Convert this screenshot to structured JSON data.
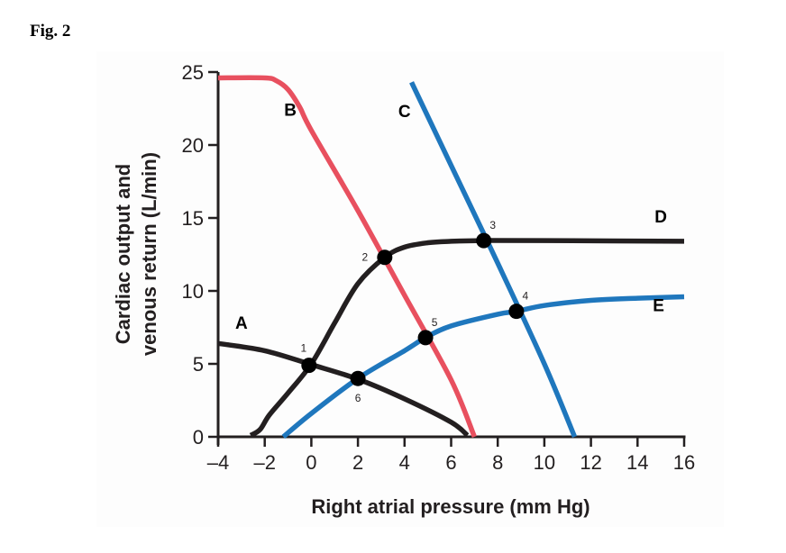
{
  "figure_label": "Fig. 2",
  "chart_data": {
    "type": "line",
    "title": "",
    "xlabel": "Right atrial pressure (mm Hg)",
    "ylabel_lines": [
      "Cardiac output and",
      "venous return (L/min)"
    ],
    "xlim": [
      -4,
      16
    ],
    "ylim": [
      0,
      25
    ],
    "x_ticks": [
      -4,
      -2,
      0,
      2,
      4,
      6,
      8,
      10,
      12,
      14,
      16
    ],
    "x_tick_labels": [
      "–4",
      "–2",
      "0",
      "2",
      "4",
      "6",
      "8",
      "10",
      "12",
      "14",
      "16"
    ],
    "y_ticks": [
      0,
      5,
      10,
      15,
      20,
      25
    ],
    "y_tick_labels": [
      "0",
      "5",
      "10",
      "15",
      "20",
      "25"
    ],
    "grid": false,
    "colors": {
      "black": "#231f20",
      "red": "#e8505f",
      "blue": "#1f77bd"
    },
    "series": [
      {
        "name": "A",
        "color": "#231f20",
        "x": [
          -4,
          -2,
          0,
          2,
          4,
          6,
          6.7
        ],
        "y": [
          6.4,
          5.9,
          4.95,
          3.95,
          2.6,
          1.0,
          0.1
        ],
        "label_at": [
          -3.0,
          7.4
        ]
      },
      {
        "name": "B",
        "color": "#e8505f",
        "x": [
          -4,
          -2,
          -1.5,
          -1.0,
          -0.5,
          0,
          2,
          4,
          6,
          7.0
        ],
        "y": [
          24.6,
          24.6,
          24.4,
          23.8,
          22.6,
          21.0,
          15.5,
          9.7,
          3.9,
          0
        ],
        "label_at": [
          -0.9,
          22.0
        ]
      },
      {
        "name": "C",
        "color": "#1f77bd",
        "x": [
          4.3,
          6,
          8,
          10,
          11.3
        ],
        "y": [
          24.3,
          18.6,
          11.9,
          5.0,
          0
        ],
        "label_at": [
          4.0,
          21.9
        ]
      },
      {
        "name": "D",
        "color": "#231f20",
        "x": [
          -2.6,
          -2.2,
          -1.8,
          -1,
          0,
          1,
          2,
          3.15,
          4,
          5,
          6,
          7.4,
          10,
          16
        ],
        "y": [
          0.1,
          0.5,
          1.5,
          3.0,
          5.0,
          7.8,
          10.5,
          12.3,
          13.0,
          13.3,
          13.4,
          13.45,
          13.45,
          13.4
        ],
        "label_at": [
          15.0,
          14.7
        ]
      },
      {
        "name": "E",
        "color": "#1f77bd",
        "x": [
          -1.2,
          0,
          2,
          4,
          4.9,
          6,
          8,
          8.8,
          10,
          12,
          14,
          16
        ],
        "y": [
          0,
          1.6,
          4.0,
          5.9,
          6.8,
          7.6,
          8.4,
          8.6,
          9.0,
          9.35,
          9.5,
          9.6
        ],
        "label_at": [
          14.9,
          8.6
        ]
      }
    ],
    "points": [
      {
        "label": "1",
        "x": -0.1,
        "y": 4.9,
        "label_pos": "above-left"
      },
      {
        "label": "2",
        "x": 3.15,
        "y": 12.3,
        "label_pos": "left"
      },
      {
        "label": "3",
        "x": 7.4,
        "y": 13.45,
        "label_pos": "above-right"
      },
      {
        "label": "4",
        "x": 8.8,
        "y": 8.6,
        "label_pos": "above-right"
      },
      {
        "label": "5",
        "x": 4.9,
        "y": 6.8,
        "label_pos": "above-right"
      },
      {
        "label": "6",
        "x": 2.0,
        "y": 4.0,
        "label_pos": "below"
      }
    ]
  }
}
